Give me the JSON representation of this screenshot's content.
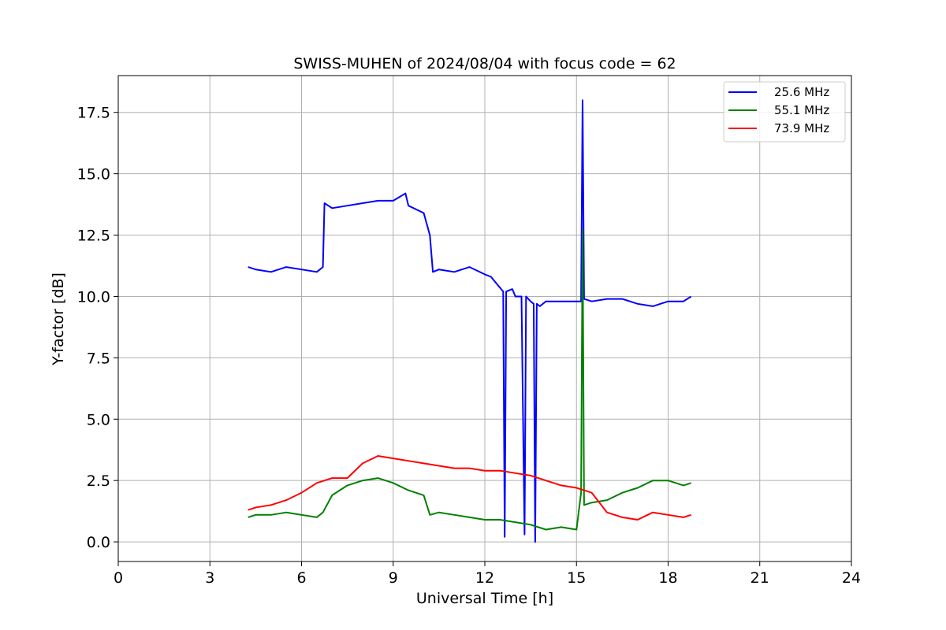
{
  "chart_data": {
    "type": "line",
    "title": "SWISS-MUHEN of 2024/08/04 with focus code = 62",
    "xlabel": "Universal Time [h]",
    "ylabel": "Y-factor [dB]",
    "xlim": [
      0,
      24
    ],
    "ylim": [
      -0.8,
      19
    ],
    "xticks": [
      0,
      3,
      6,
      9,
      12,
      15,
      18,
      21,
      24
    ],
    "xtick_labels": [
      "0",
      "3",
      "6",
      "9",
      "12",
      "15",
      "18",
      "21",
      "24"
    ],
    "yticks": [
      0.0,
      2.5,
      5.0,
      7.5,
      10.0,
      12.5,
      15.0,
      17.5
    ],
    "ytick_labels": [
      "0.0",
      "2.5",
      "5.0",
      "7.5",
      "10.0",
      "12.5",
      "15.0",
      "17.5"
    ],
    "grid": true,
    "legend_position": "top-right",
    "series": [
      {
        "name": "25.6 MHz",
        "color": "#0000ff",
        "x": [
          4.25,
          4.5,
          5.0,
          5.5,
          6.0,
          6.5,
          6.7,
          6.75,
          7.0,
          7.5,
          8.0,
          8.5,
          9.0,
          9.4,
          9.5,
          10.0,
          10.2,
          10.3,
          10.5,
          11.0,
          11.5,
          12.0,
          12.2,
          12.4,
          12.6,
          12.65,
          12.7,
          12.9,
          13.0,
          13.2,
          13.3,
          13.35,
          13.5,
          13.6,
          13.65,
          13.7,
          13.8,
          14.0,
          14.5,
          15.0,
          15.15,
          15.2,
          15.25,
          15.5,
          16.0,
          16.5,
          17.0,
          17.5,
          18.0,
          18.5,
          18.75
        ],
        "y": [
          11.2,
          11.1,
          11.0,
          11.2,
          11.1,
          11.0,
          11.2,
          13.8,
          13.6,
          13.7,
          13.8,
          13.9,
          13.9,
          14.2,
          13.7,
          13.4,
          12.5,
          11.0,
          11.1,
          11.0,
          11.2,
          10.9,
          10.8,
          10.5,
          10.2,
          0.2,
          10.2,
          10.3,
          10.0,
          10.0,
          0.3,
          10.0,
          9.8,
          9.7,
          0.0,
          9.7,
          9.6,
          9.8,
          9.8,
          9.8,
          9.8,
          18.0,
          9.9,
          9.8,
          9.9,
          9.9,
          9.7,
          9.6,
          9.8,
          9.8,
          10.0
        ]
      },
      {
        "name": "55.1 MHz",
        "color": "#008000",
        "x": [
          4.25,
          4.5,
          5.0,
          5.5,
          6.0,
          6.5,
          6.7,
          7.0,
          7.5,
          8.0,
          8.5,
          9.0,
          9.5,
          10.0,
          10.2,
          10.5,
          11.0,
          11.5,
          12.0,
          12.5,
          13.0,
          13.5,
          14.0,
          14.5,
          15.0,
          15.15,
          15.2,
          15.25,
          15.5,
          16.0,
          16.5,
          17.0,
          17.5,
          18.0,
          18.5,
          18.75
        ],
        "y": [
          1.0,
          1.1,
          1.1,
          1.2,
          1.1,
          1.0,
          1.2,
          1.9,
          2.3,
          2.5,
          2.6,
          2.4,
          2.1,
          1.9,
          1.1,
          1.2,
          1.1,
          1.0,
          0.9,
          0.9,
          0.8,
          0.7,
          0.5,
          0.6,
          0.5,
          2.0,
          12.7,
          1.5,
          1.6,
          1.7,
          2.0,
          2.2,
          2.5,
          2.5,
          2.3,
          2.4
        ]
      },
      {
        "name": "73.9 MHz",
        "color": "#ff0000",
        "x": [
          4.25,
          4.5,
          5.0,
          5.5,
          6.0,
          6.5,
          7.0,
          7.5,
          8.0,
          8.5,
          9.0,
          9.5,
          10.0,
          10.5,
          11.0,
          11.5,
          12.0,
          12.5,
          13.0,
          13.5,
          14.0,
          14.5,
          15.0,
          15.5,
          16.0,
          16.5,
          17.0,
          17.5,
          18.0,
          18.5,
          18.75
        ],
        "y": [
          1.3,
          1.4,
          1.5,
          1.7,
          2.0,
          2.4,
          2.6,
          2.6,
          3.2,
          3.5,
          3.4,
          3.3,
          3.2,
          3.1,
          3.0,
          3.0,
          2.9,
          2.9,
          2.8,
          2.7,
          2.5,
          2.3,
          2.2,
          2.0,
          1.2,
          1.0,
          0.9,
          1.2,
          1.1,
          1.0,
          1.1
        ]
      }
    ]
  }
}
